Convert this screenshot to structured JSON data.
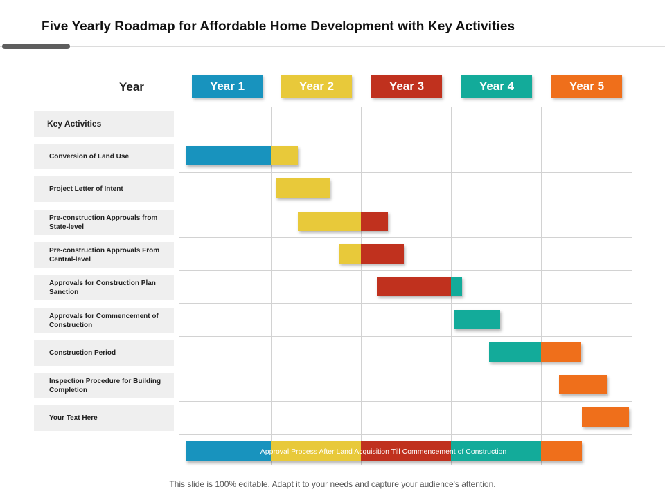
{
  "title": "Five Yearly Roadmap for Affordable Home Development with Key Activities",
  "year_label": "Year",
  "years": [
    {
      "label": "Year 1",
      "color": "#1893be"
    },
    {
      "label": "Year 2",
      "color": "#e8c93a"
    },
    {
      "label": "Year 3",
      "color": "#c0311e"
    },
    {
      "label": "Year 4",
      "color": "#13ab9a"
    },
    {
      "label": "Year 5",
      "color": "#ef6f1b"
    }
  ],
  "key_activities_header": "Key Activities",
  "activities": [
    {
      "label": "Conversion of Land Use",
      "start": 0.05,
      "end": 1.3
    },
    {
      "label": "Project Letter of Intent",
      "start": 1.05,
      "end": 1.65
    },
    {
      "label": "Pre-construction Approvals from State-level",
      "start": 1.3,
      "end": 2.3
    },
    {
      "label": "Pre-construction Approvals From Central-level",
      "start": 1.75,
      "end": 2.48
    },
    {
      "label": "Approvals for Construction Plan Sanction",
      "start": 2.18,
      "end": 3.12
    },
    {
      "label": "Approvals for Commencement of Construction",
      "start": 3.03,
      "end": 3.55
    },
    {
      "label": "Construction Period",
      "start": 3.42,
      "end": 4.45
    },
    {
      "label": "Inspection Procedure for Building Completion",
      "start": 4.2,
      "end": 4.73
    },
    {
      "label": "Your Text Here",
      "start": 4.45,
      "end": 4.98
    }
  ],
  "summary_bar": {
    "text": "Approval Process After Land Acquisition Till Commencement of Construction",
    "start": 0.05,
    "end": 4.45
  },
  "footer": "This slide is 100% editable. Adapt it to your needs and capture your audience's attention."
}
